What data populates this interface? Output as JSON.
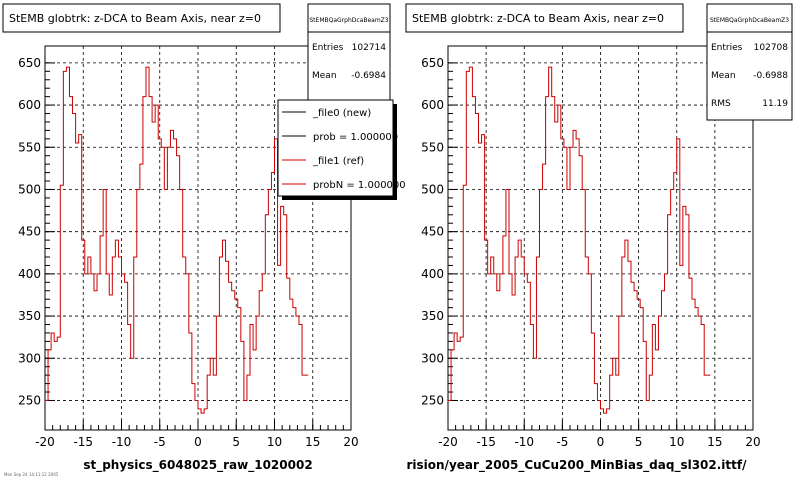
{
  "chart_data": [
    {
      "type": "histogram-step",
      "title": "StEMB globtrk: z-DCA to Beam Axis, near z=0",
      "xlabel": "st_physics_6048025_raw_1020002",
      "xlim": [
        -20,
        20
      ],
      "ylim": [
        215,
        670
      ],
      "xticks": [
        "-20",
        "-15",
        "-10",
        "-5",
        "0",
        "5",
        "10",
        "15",
        "20"
      ],
      "yticks": [
        "250",
        "300",
        "350",
        "400",
        "450",
        "500",
        "550",
        "600",
        "650"
      ],
      "stats": {
        "name": "StEMBQaGrphDcaBeamZ3",
        "rows": [
          {
            "label": "Entries",
            "value": "102714"
          },
          {
            "label": "Mean",
            "value": "-0.6984"
          }
        ]
      },
      "legend": [
        {
          "label": "_file0 (new)",
          "color": "#000000"
        },
        {
          "label": "prob = 1.000000",
          "color": "#000000"
        },
        {
          "label": "_file1 (ref)",
          "color": "#cc0000"
        },
        {
          "label": "probN = 1.000000",
          "color": "#cc0000"
        }
      ],
      "series": [
        {
          "color": "#cc0000",
          "x_edges_start": -20,
          "bin_width": 0.4,
          "values": [
            250,
            310,
            330,
            320,
            325,
            505,
            640,
            645,
            610,
            590,
            555,
            565,
            440,
            400,
            420,
            400,
            380,
            400,
            445,
            500,
            400,
            375,
            420,
            440,
            420,
            400,
            390,
            340,
            300,
            420,
            500,
            530,
            610,
            645,
            610,
            580,
            600,
            560,
            550,
            500,
            550,
            570,
            560,
            540,
            500,
            420,
            400,
            330,
            270,
            250,
            240,
            235,
            240,
            280,
            300,
            280,
            350,
            420,
            440,
            415,
            390,
            380,
            370,
            360,
            320,
            250,
            280,
            340,
            310,
            350,
            380,
            400,
            470,
            500,
            520,
            560,
            410,
            480,
            470,
            395,
            370,
            360,
            350,
            340,
            280,
            280
          ]
        }
      ]
    },
    {
      "type": "histogram-step",
      "title": "StEMB globtrk: z-DCA to Beam Axis, near z=0",
      "xlabel": "rision/year_2005_CuCu200_MinBias_daq_sl302.ittf/",
      "xlim": [
        -20,
        20
      ],
      "ylim": [
        215,
        670
      ],
      "xticks": [
        "-20",
        "-15",
        "-10",
        "-5",
        "0",
        "5",
        "10",
        "15",
        "20"
      ],
      "yticks": [
        "250",
        "300",
        "350",
        "400",
        "450",
        "500",
        "550",
        "600",
        "650"
      ],
      "stats": {
        "name": "StEMBQaGrphDcaBeamZ3",
        "rows": [
          {
            "label": "Entries",
            "value": "102708"
          },
          {
            "label": "Mean",
            "value": "-0.6988"
          },
          {
            "label": "RMS",
            "value": "11.19"
          }
        ]
      },
      "series": [
        {
          "color": "#cc0000",
          "x_edges_start": -20,
          "bin_width": 0.4,
          "values": [
            250,
            310,
            330,
            320,
            325,
            505,
            640,
            645,
            610,
            590,
            555,
            565,
            440,
            400,
            420,
            400,
            380,
            400,
            445,
            500,
            400,
            375,
            420,
            440,
            420,
            400,
            390,
            340,
            300,
            420,
            500,
            530,
            610,
            645,
            610,
            580,
            600,
            560,
            550,
            500,
            550,
            570,
            560,
            540,
            500,
            420,
            400,
            330,
            270,
            250,
            240,
            235,
            240,
            280,
            300,
            280,
            350,
            420,
            440,
            415,
            390,
            380,
            370,
            360,
            320,
            250,
            280,
            340,
            310,
            350,
            380,
            400,
            470,
            500,
            520,
            560,
            410,
            480,
            470,
            395,
            370,
            360,
            350,
            340,
            280,
            280
          ]
        }
      ]
    }
  ],
  "footer_note": "Mon Sep 24 14:11:12 2005"
}
